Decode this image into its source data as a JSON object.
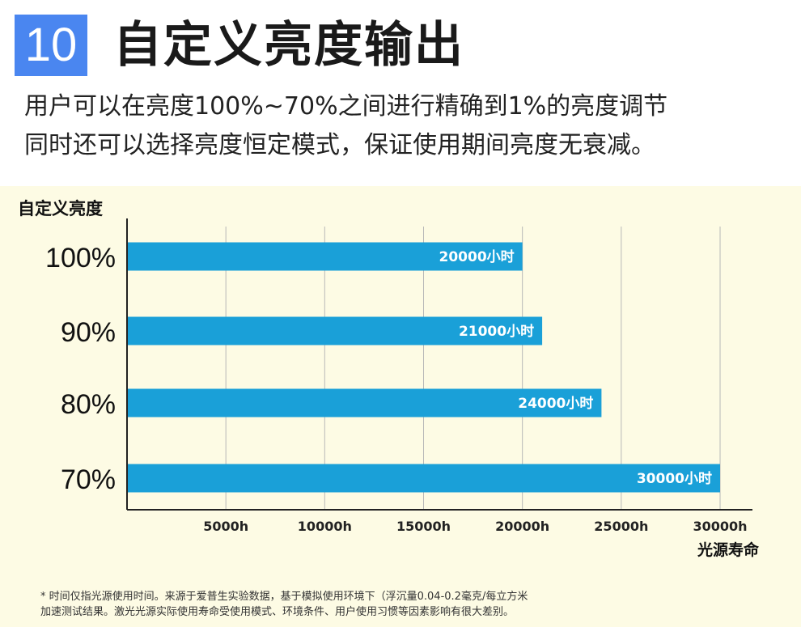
{
  "header": {
    "badge_number": "10",
    "title": "自定义亮度输出",
    "subtitle_line1": "用户可以在亮度100%~70%之间进行精确到1%的亮度调节",
    "subtitle_line2": "同时还可以选择亮度恒定模式，保证使用期间亮度无衰减。"
  },
  "chart_data": {
    "type": "bar",
    "orientation": "horizontal",
    "categories": [
      "100%",
      "90%",
      "80%",
      "70%"
    ],
    "values": [
      20000,
      21000,
      24000,
      30000
    ],
    "bar_labels": [
      "20000小时",
      "21000小时",
      "24000小时",
      "30000小时"
    ],
    "xticks": [
      5000,
      10000,
      15000,
      20000,
      25000,
      30000
    ],
    "xtick_labels": [
      "5000h",
      "10000h",
      "15000h",
      "20000h",
      "25000h",
      "30000h"
    ],
    "xlim": [
      0,
      30000
    ],
    "ylabel": "自定义亮度",
    "xlabel": "光源寿命",
    "grid": true,
    "bar_color": "#1aa0d8"
  },
  "footnote": {
    "line1": "* 时间仅指光源使用时间。来源于爱普生实验数据，基于模拟使用环境下（浮沉量0.04-0.2毫克/每立方米",
    "line2": "加速测试结果。激光光源实际使用寿命受使用模式、环境条件、用户使用习惯等因素影响有很大差别。"
  }
}
